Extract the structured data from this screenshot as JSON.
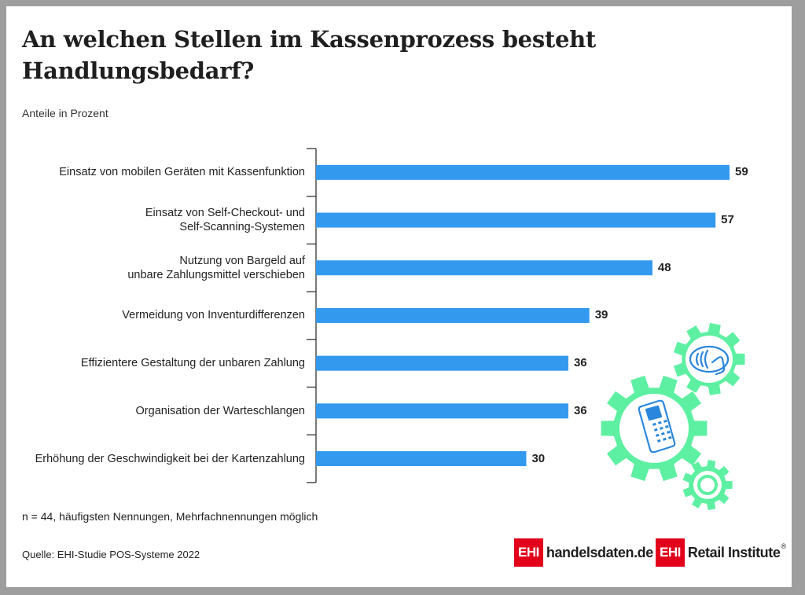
{
  "title_line1": "An welchen Stellen im Kassenprozess besteht",
  "title_line2": "Handlungsbedarf?",
  "subtitle": "Anteile in Prozent",
  "note": "n = 44, häufigsten Nennungen, Mehrfachnennungen möglich",
  "source": "Quelle: EHI-Studie POS-Systeme 2022",
  "logos": {
    "handelsdaten_box": "EHI",
    "handelsdaten_text": "handelsdaten.de",
    "ehi_box": "EHI",
    "ehi_text": "Retail Institute",
    "registered": "®"
  },
  "colors": {
    "bar": "#3399ef",
    "gear": "#5ef0a2",
    "icon_line": "#2a86dc",
    "logo_red": "#e2001a"
  },
  "icons": [
    "contactless-payment-icon",
    "mobile-pos-terminal-icon",
    "gear-icon"
  ],
  "chart_data": {
    "type": "bar",
    "orientation": "horizontal",
    "title": "An welchen Stellen im Kassenprozess besteht Handlungsbedarf?",
    "subtitle": "Anteile in Prozent",
    "categories": [
      [
        "Einsatz von mobilen Geräten mit Kassenfunktion"
      ],
      [
        "Einsatz von Self-Checkout- und",
        "Self-Scanning-Systemen"
      ],
      [
        "Nutzung von Bargeld auf",
        "unbare Zahlungsmittel verschieben"
      ],
      [
        "Vermeidung von Inventurdifferenzen"
      ],
      [
        "Effizientere Gestaltung der unbaren Zahlung"
      ],
      [
        "Organisation der Warteschlangen"
      ],
      [
        "Erhöhung der Geschwindigkeit bei der Kartenzahlung"
      ]
    ],
    "values": [
      59,
      57,
      48,
      39,
      36,
      36,
      30
    ],
    "xlim": [
      0,
      59
    ],
    "grid": false,
    "data_labels": true
  }
}
